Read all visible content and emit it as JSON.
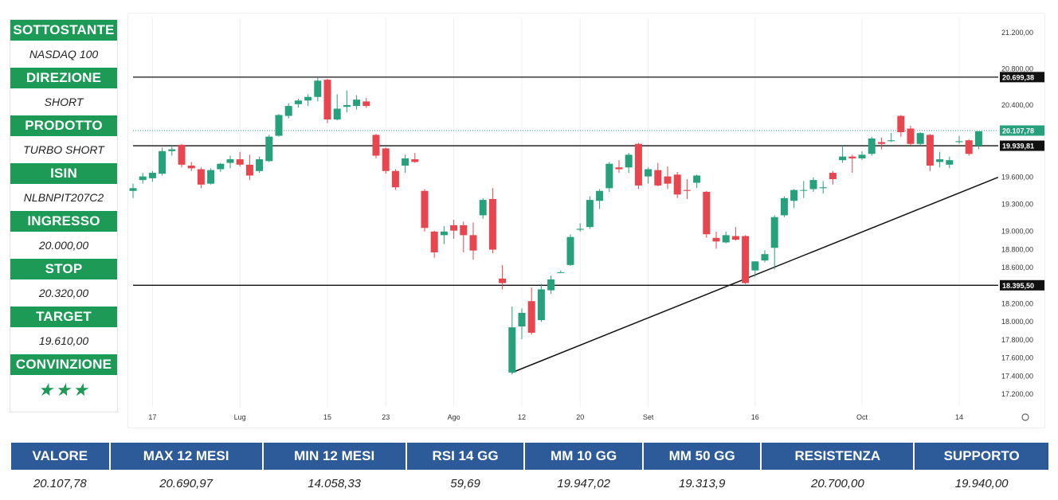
{
  "panel": {
    "rows": [
      {
        "label": "SOTTOSTANTE",
        "value": "NASDAQ 100"
      },
      {
        "label": "DIREZIONE",
        "value": "SHORT"
      },
      {
        "label": "PRODOTTO",
        "value": "TURBO SHORT"
      },
      {
        "label": "ISIN",
        "value": "NLBNPIT207C2"
      },
      {
        "label": "INGRESSO",
        "value": "20.000,00"
      },
      {
        "label": "STOP",
        "value": "20.320,00"
      },
      {
        "label": "TARGET",
        "value": "19.610,00"
      },
      {
        "label": "CONVINZIONE",
        "value": "★★★"
      }
    ],
    "stars_rating": 3
  },
  "colors": {
    "panel_header": "#1e9a57",
    "table_header": "#2d5b9a",
    "candle_up": "#26a17b",
    "candle_down": "#e8454f",
    "level_line": "#111111",
    "trend_line": "#111111",
    "last_price_tag": "#26a17b"
  },
  "chart_data": {
    "type": "candlestick",
    "title": "",
    "xlabel": "",
    "ylabel": "",
    "ylim": [
      17050,
      21350
    ],
    "yticks": [
      21200,
      20800,
      20400,
      19600,
      19300,
      19000,
      18800,
      18600,
      18200,
      18000,
      17800,
      17600,
      17400,
      17200
    ],
    "ytick_labels": [
      "21.200,00",
      "20.800,00",
      "20.400,00",
      "19.600,00",
      "19.300,00",
      "19.000,00",
      "18.800,00",
      "18.600,00",
      "18.200,00",
      "18.000,00",
      "17.800,00",
      "17.600,00",
      "17.400,00",
      "17.200,00"
    ],
    "xticks": [
      {
        "label": "17",
        "index": 2
      },
      {
        "label": "Lug",
        "index": 11
      },
      {
        "label": "15",
        "index": 20
      },
      {
        "label": "23",
        "index": 26
      },
      {
        "label": "Ago",
        "index": 33
      },
      {
        "label": "12",
        "index": 40
      },
      {
        "label": "20",
        "index": 46
      },
      {
        "label": "Set",
        "index": 53
      },
      {
        "label": "16",
        "index": 64
      },
      {
        "label": "Oct",
        "index": 75
      },
      {
        "label": "14",
        "index": 85
      }
    ],
    "gridlines": "vertical",
    "candles": [
      {
        "o": 19440,
        "h": 19520,
        "l": 19360,
        "c": 19470
      },
      {
        "o": 19560,
        "h": 19640,
        "l": 19520,
        "c": 19600
      },
      {
        "o": 19580,
        "h": 19660,
        "l": 19540,
        "c": 19640
      },
      {
        "o": 19630,
        "h": 19920,
        "l": 19610,
        "c": 19880
      },
      {
        "o": 19880,
        "h": 19940,
        "l": 19830,
        "c": 19900
      },
      {
        "o": 19950,
        "h": 19960,
        "l": 19700,
        "c": 19730
      },
      {
        "o": 19720,
        "h": 19760,
        "l": 19660,
        "c": 19690
      },
      {
        "o": 19680,
        "h": 19700,
        "l": 19470,
        "c": 19510
      },
      {
        "o": 19520,
        "h": 19690,
        "l": 19510,
        "c": 19670
      },
      {
        "o": 19680,
        "h": 19750,
        "l": 19650,
        "c": 19740
      },
      {
        "o": 19750,
        "h": 19830,
        "l": 19690,
        "c": 19790
      },
      {
        "o": 19790,
        "h": 19870,
        "l": 19710,
        "c": 19730
      },
      {
        "o": 19730,
        "h": 19840,
        "l": 19560,
        "c": 19610
      },
      {
        "o": 19660,
        "h": 19820,
        "l": 19640,
        "c": 19790
      },
      {
        "o": 19770,
        "h": 20060,
        "l": 19760,
        "c": 20040
      },
      {
        "o": 20050,
        "h": 20290,
        "l": 20040,
        "c": 20280
      },
      {
        "o": 20270,
        "h": 20410,
        "l": 20240,
        "c": 20380
      },
      {
        "o": 20400,
        "h": 20460,
        "l": 20360,
        "c": 20440
      },
      {
        "o": 20440,
        "h": 20510,
        "l": 20380,
        "c": 20480
      },
      {
        "o": 20480,
        "h": 20690,
        "l": 20430,
        "c": 20660
      },
      {
        "o": 20670,
        "h": 20680,
        "l": 20190,
        "c": 20230
      },
      {
        "o": 20230,
        "h": 20510,
        "l": 20220,
        "c": 20350
      },
      {
        "o": 20370,
        "h": 20550,
        "l": 20310,
        "c": 20390
      },
      {
        "o": 20380,
        "h": 20500,
        "l": 20340,
        "c": 20450
      },
      {
        "o": 20430,
        "h": 20470,
        "l": 20360,
        "c": 20380
      },
      {
        "o": 20060,
        "h": 20070,
        "l": 19800,
        "c": 19830
      },
      {
        "o": 19910,
        "h": 19920,
        "l": 19630,
        "c": 19660
      },
      {
        "o": 19660,
        "h": 19680,
        "l": 19450,
        "c": 19480
      },
      {
        "o": 19720,
        "h": 19840,
        "l": 19640,
        "c": 19800
      },
      {
        "o": 19790,
        "h": 19860,
        "l": 19750,
        "c": 19760
      },
      {
        "o": 19440,
        "h": 19460,
        "l": 18990,
        "c": 19030
      },
      {
        "o": 18990,
        "h": 19000,
        "l": 18700,
        "c": 18760
      },
      {
        "o": 18950,
        "h": 19050,
        "l": 18850,
        "c": 18990
      },
      {
        "o": 19060,
        "h": 19120,
        "l": 18910,
        "c": 19000
      },
      {
        "o": 19060,
        "h": 19100,
        "l": 18760,
        "c": 18950
      },
      {
        "o": 18950,
        "h": 19090,
        "l": 18680,
        "c": 18780
      },
      {
        "o": 19170,
        "h": 19360,
        "l": 19130,
        "c": 19340
      },
      {
        "o": 19350,
        "h": 19470,
        "l": 18750,
        "c": 18790
      },
      {
        "o": 18470,
        "h": 18620,
        "l": 18350,
        "c": 18420
      },
      {
        "o": 17430,
        "h": 18160,
        "l": 17410,
        "c": 17930
      },
      {
        "o": 17940,
        "h": 18140,
        "l": 17800,
        "c": 18090
      },
      {
        "o": 18220,
        "h": 18370,
        "l": 17850,
        "c": 17870
      },
      {
        "o": 18010,
        "h": 18410,
        "l": 17990,
        "c": 18350
      },
      {
        "o": 18340,
        "h": 18500,
        "l": 18300,
        "c": 18460
      },
      {
        "o": 18540,
        "h": 18560,
        "l": 18540,
        "c": 18540
      },
      {
        "o": 18620,
        "h": 18960,
        "l": 18610,
        "c": 18930
      },
      {
        "o": 19010,
        "h": 19080,
        "l": 18990,
        "c": 19020
      },
      {
        "o": 19040,
        "h": 19380,
        "l": 19020,
        "c": 19340
      },
      {
        "o": 19330,
        "h": 19460,
        "l": 19240,
        "c": 19440
      },
      {
        "o": 19470,
        "h": 19760,
        "l": 19430,
        "c": 19740
      },
      {
        "o": 19700,
        "h": 19780,
        "l": 19640,
        "c": 19680
      },
      {
        "o": 19700,
        "h": 19860,
        "l": 19640,
        "c": 19840
      },
      {
        "o": 19960,
        "h": 19970,
        "l": 19460,
        "c": 19500
      },
      {
        "o": 19600,
        "h": 19700,
        "l": 19520,
        "c": 19680
      },
      {
        "o": 19670,
        "h": 19750,
        "l": 19490,
        "c": 19500
      },
      {
        "o": 19600,
        "h": 19710,
        "l": 19460,
        "c": 19520
      },
      {
        "o": 19620,
        "h": 19650,
        "l": 19360,
        "c": 19400
      },
      {
        "o": 19450,
        "h": 19570,
        "l": 19350,
        "c": 19440
      },
      {
        "o": 19530,
        "h": 19620,
        "l": 19470,
        "c": 19610
      },
      {
        "o": 19430,
        "h": 19440,
        "l": 18920,
        "c": 18960
      },
      {
        "o": 18920,
        "h": 18990,
        "l": 18800,
        "c": 18880
      },
      {
        "o": 18870,
        "h": 18990,
        "l": 18860,
        "c": 18950
      },
      {
        "o": 18940,
        "h": 19040,
        "l": 18890,
        "c": 18900
      },
      {
        "o": 18940,
        "h": 18950,
        "l": 18410,
        "c": 18420
      },
      {
        "o": 18560,
        "h": 18660,
        "l": 18490,
        "c": 18660
      },
      {
        "o": 18670,
        "h": 18780,
        "l": 18650,
        "c": 18740
      },
      {
        "o": 18810,
        "h": 19170,
        "l": 18570,
        "c": 19150
      },
      {
        "o": 19170,
        "h": 19380,
        "l": 19150,
        "c": 19360
      },
      {
        "o": 19330,
        "h": 19460,
        "l": 19250,
        "c": 19450
      },
      {
        "o": 19450,
        "h": 19550,
        "l": 19360,
        "c": 19450
      },
      {
        "o": 19460,
        "h": 19590,
        "l": 19430,
        "c": 19560
      },
      {
        "o": 19470,
        "h": 19550,
        "l": 19410,
        "c": 19480
      },
      {
        "o": 19640,
        "h": 19660,
        "l": 19510,
        "c": 19570
      },
      {
        "o": 19780,
        "h": 19940,
        "l": 19750,
        "c": 19820
      },
      {
        "o": 19820,
        "h": 19840,
        "l": 19640,
        "c": 19800
      },
      {
        "o": 19800,
        "h": 19880,
        "l": 19780,
        "c": 19840
      },
      {
        "o": 19850,
        "h": 20040,
        "l": 19830,
        "c": 20020
      },
      {
        "o": 19980,
        "h": 20030,
        "l": 19900,
        "c": 19960
      },
      {
        "o": 19990,
        "h": 20080,
        "l": 19980,
        "c": 20000
      },
      {
        "o": 20270,
        "h": 20280,
        "l": 20040,
        "c": 20090
      },
      {
        "o": 20130,
        "h": 20160,
        "l": 19940,
        "c": 19960
      },
      {
        "o": 19960,
        "h": 20090,
        "l": 19940,
        "c": 20080
      },
      {
        "o": 20060,
        "h": 20070,
        "l": 19660,
        "c": 19720
      },
      {
        "o": 19760,
        "h": 19870,
        "l": 19700,
        "c": 19790
      },
      {
        "o": 19730,
        "h": 19820,
        "l": 19690,
        "c": 19780
      },
      {
        "o": 19980,
        "h": 20050,
        "l": 19960,
        "c": 19990
      },
      {
        "o": 20000,
        "h": 20010,
        "l": 19830,
        "c": 19850
      },
      {
        "o": 19940,
        "h": 20100,
        "l": 19900,
        "c": 20100
      }
    ],
    "horizontal_levels": [
      {
        "value": 20699.38,
        "label": "20.699,38"
      },
      {
        "value": 19939.81,
        "label": "19.939,81"
      },
      {
        "value": 18395.5,
        "label": "18.395,50"
      }
    ],
    "last_price": {
      "value": 20107.78,
      "label": "20.107,78"
    },
    "trendline": {
      "from": {
        "index": 39,
        "value": 17430
      },
      "to": {
        "index": 89,
        "value": 19590
      }
    }
  },
  "stats_table": {
    "headers": [
      "VALORE",
      "MAX 12 MESI",
      "MIN 12 MESI",
      "RSI 14 GG",
      "MM 10 GG",
      "MM 50 GG",
      "RESISTENZA",
      "SUPPORTO"
    ],
    "values": [
      "20.107,78",
      "20.690,97",
      "14.058,33",
      "59,69",
      "19.947,02",
      "19.313,9",
      "20.700,00",
      "19.940,00"
    ]
  }
}
